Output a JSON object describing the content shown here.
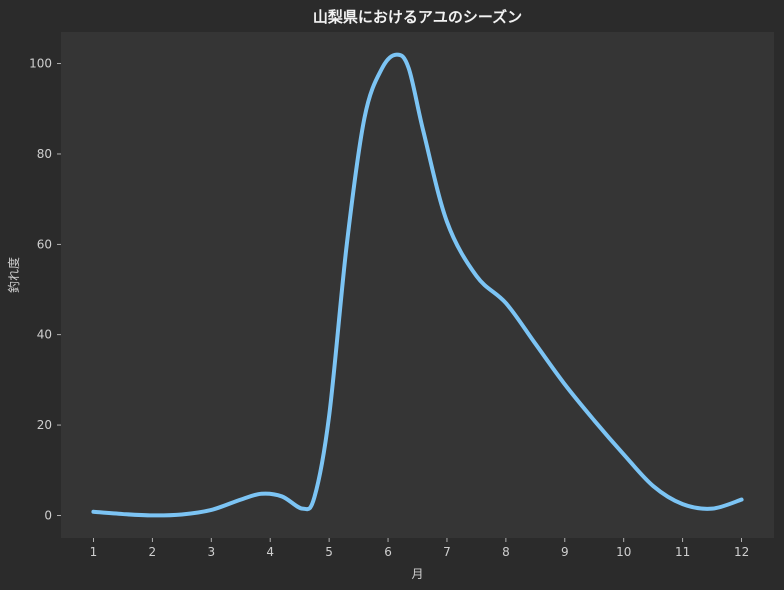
{
  "chart_data": {
    "type": "line",
    "title": "山梨県におけるアユのシーズン",
    "xlabel": "月",
    "ylabel": "釣れ度",
    "x": [
      1,
      2,
      3,
      4,
      5,
      6,
      7,
      8,
      9,
      10,
      11,
      12
    ],
    "x_tick_labels": [
      "1",
      "2",
      "3",
      "4",
      "5",
      "6",
      "7",
      "8",
      "9",
      "10",
      "11",
      "12"
    ],
    "y_ticks": [
      0,
      20,
      40,
      60,
      80,
      100
    ],
    "y_tick_labels": [
      "0",
      "20",
      "40",
      "60",
      "80",
      "100"
    ],
    "xlim": [
      0.45,
      12.55
    ],
    "ylim": [
      -5,
      107
    ],
    "grid": false,
    "series": [
      {
        "color": "#7cc4f4",
        "smoothed": true,
        "points": [
          [
            1,
            0.8
          ],
          [
            1.5,
            0.3
          ],
          [
            2,
            0
          ],
          [
            2.5,
            0.2
          ],
          [
            3,
            1.2
          ],
          [
            3.5,
            3.5
          ],
          [
            3.85,
            4.8
          ],
          [
            4.2,
            4.2
          ],
          [
            4.55,
            1.5
          ],
          [
            4.75,
            4
          ],
          [
            5,
            22
          ],
          [
            5.3,
            60
          ],
          [
            5.6,
            88
          ],
          [
            5.9,
            99
          ],
          [
            6.15,
            102
          ],
          [
            6.35,
            99
          ],
          [
            6.6,
            85
          ],
          [
            7,
            65
          ],
          [
            7.5,
            53
          ],
          [
            8,
            47
          ],
          [
            8.5,
            38
          ],
          [
            9,
            29
          ],
          [
            9.5,
            21
          ],
          [
            10,
            13.5
          ],
          [
            10.5,
            6.5
          ],
          [
            11,
            2.5
          ],
          [
            11.5,
            1.5
          ],
          [
            12,
            3.5
          ]
        ]
      }
    ],
    "colors": {
      "figure_background": "#2b2b2b",
      "plot_background": "#353535",
      "line": "#7cc4f4",
      "text": "#cfcfcf",
      "title": "#f2f2f2"
    }
  }
}
